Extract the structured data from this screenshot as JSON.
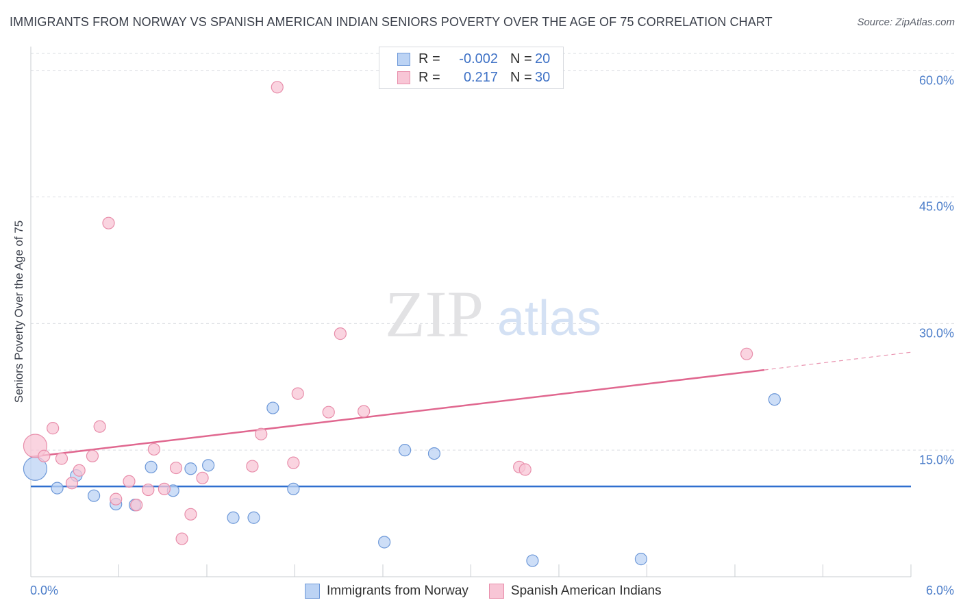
{
  "title": "IMMIGRANTS FROM NORWAY VS SPANISH AMERICAN INDIAN SENIORS POVERTY OVER THE AGE OF 75 CORRELATION CHART",
  "source": "Source: ZipAtlas.com",
  "watermark": {
    "zip": "ZIP",
    "atlas": "atlas"
  },
  "colors": {
    "blue_fill": "#bcd3f4",
    "blue_stroke": "#6d98d8",
    "blue_line": "#2f6fcf",
    "pink_fill": "#f8c6d6",
    "pink_stroke": "#e88daa",
    "pink_line": "#e0678f",
    "tick_text": "#4a7cc9",
    "grid": "#d9dce1"
  },
  "stats": [
    {
      "r_label": "R =",
      "r_value": "-0.002",
      "n_label": "N =",
      "n_value": "20"
    },
    {
      "r_label": "R =",
      "r_value": "0.217",
      "n_label": "N =",
      "n_value": "30"
    }
  ],
  "legend": [
    "Immigrants from Norway",
    "Spanish American Indians"
  ],
  "chart_data": {
    "type": "scatter",
    "title": "IMMIGRANTS FROM NORWAY VS SPANISH AMERICAN INDIAN SENIORS POVERTY OVER THE AGE OF 75 CORRELATION CHART",
    "xlabel": "",
    "ylabel": "Seniors Poverty Over the Age of 75",
    "xlim": [
      0,
      6
    ],
    "ylim": [
      0,
      62
    ],
    "x_tick_labels": [
      "0.0%",
      "6.0%"
    ],
    "y_ticks": [
      15,
      30,
      45,
      60
    ],
    "y_tick_labels": [
      "15.0%",
      "30.0%",
      "45.0%",
      "60.0%"
    ],
    "grid": true,
    "legend_position": "bottom-center",
    "series": [
      {
        "name": "Immigrants from Norway",
        "r": -0.002,
        "n": 20,
        "trend": {
          "x0": 0,
          "y0": 10.7,
          "x1": 6,
          "y1": 10.7
        },
        "points": [
          {
            "x": 0.03,
            "y": 12.8,
            "big": true
          },
          {
            "x": 0.18,
            "y": 10.5
          },
          {
            "x": 0.31,
            "y": 12.0
          },
          {
            "x": 0.43,
            "y": 9.6
          },
          {
            "x": 0.58,
            "y": 8.6
          },
          {
            "x": 0.71,
            "y": 8.5
          },
          {
            "x": 0.82,
            "y": 13.0
          },
          {
            "x": 0.97,
            "y": 10.2
          },
          {
            "x": 1.09,
            "y": 12.8
          },
          {
            "x": 1.21,
            "y": 13.2
          },
          {
            "x": 1.38,
            "y": 7.0
          },
          {
            "x": 1.52,
            "y": 7.0
          },
          {
            "x": 1.65,
            "y": 20.0
          },
          {
            "x": 1.79,
            "y": 10.4
          },
          {
            "x": 2.41,
            "y": 4.1
          },
          {
            "x": 2.55,
            "y": 15.0
          },
          {
            "x": 2.75,
            "y": 14.6
          },
          {
            "x": 3.42,
            "y": 1.9
          },
          {
            "x": 4.16,
            "y": 2.1
          },
          {
            "x": 5.07,
            "y": 21.0
          }
        ]
      },
      {
        "name": "Spanish American Indians",
        "r": 0.217,
        "n": 30,
        "trend": {
          "x0": 0,
          "y0": 14.2,
          "x1": 5.0,
          "y1": 24.5,
          "dashed_to_x": 6,
          "dashed_to_y": 26.6
        },
        "points": [
          {
            "x": 0.03,
            "y": 15.5,
            "big": true
          },
          {
            "x": 0.09,
            "y": 14.3
          },
          {
            "x": 0.15,
            "y": 17.6
          },
          {
            "x": 0.21,
            "y": 14.0
          },
          {
            "x": 0.28,
            "y": 11.1
          },
          {
            "x": 0.33,
            "y": 12.6
          },
          {
            "x": 0.42,
            "y": 14.3
          },
          {
            "x": 0.47,
            "y": 17.8
          },
          {
            "x": 0.53,
            "y": 41.9
          },
          {
            "x": 0.58,
            "y": 9.2
          },
          {
            "x": 0.67,
            "y": 11.3
          },
          {
            "x": 0.72,
            "y": 8.5
          },
          {
            "x": 0.8,
            "y": 10.3
          },
          {
            "x": 0.84,
            "y": 15.1
          },
          {
            "x": 0.91,
            "y": 10.4
          },
          {
            "x": 0.99,
            "y": 12.9
          },
          {
            "x": 1.03,
            "y": 4.5
          },
          {
            "x": 1.09,
            "y": 7.4
          },
          {
            "x": 1.17,
            "y": 11.7
          },
          {
            "x": 1.51,
            "y": 13.1
          },
          {
            "x": 1.57,
            "y": 16.9
          },
          {
            "x": 1.68,
            "y": 58.0
          },
          {
            "x": 1.79,
            "y": 13.5
          },
          {
            "x": 1.82,
            "y": 21.7
          },
          {
            "x": 2.03,
            "y": 19.5
          },
          {
            "x": 2.11,
            "y": 28.8
          },
          {
            "x": 2.27,
            "y": 19.6
          },
          {
            "x": 3.33,
            "y": 13.0
          },
          {
            "x": 3.37,
            "y": 12.7
          },
          {
            "x": 4.88,
            "y": 26.4
          }
        ]
      }
    ]
  }
}
